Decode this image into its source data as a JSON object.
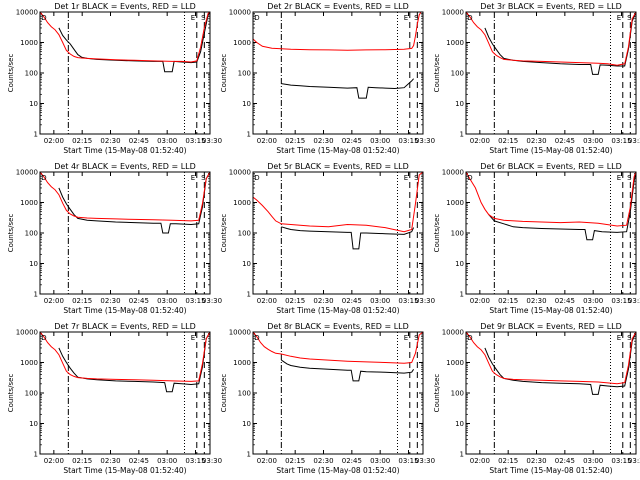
{
  "chart_data": [
    {
      "type": "line",
      "title": "Det 1r BLACK = Events, RED = LLD",
      "xlabel": "Start Time (15-May-08 01:52:40)",
      "ylabel": "Counts/sec",
      "yscale": "log",
      "ylim": [
        1,
        10000
      ],
      "yticks": [
        "1",
        "10",
        "100",
        "1000",
        "10000"
      ],
      "xticks": [
        "02:00",
        "02:15",
        "02:30",
        "02:45",
        "03:00",
        "03:15",
        "03:30"
      ],
      "markers": [
        "D",
        "E",
        "S"
      ],
      "series": [
        {
          "color": "#000000",
          "x": [
            10,
            12,
            14,
            16,
            18,
            20,
            22,
            25,
            30,
            40,
            50,
            60,
            65,
            66,
            70,
            71,
            75,
            80,
            83,
            85,
            87,
            89,
            90
          ],
          "y": [
            3000,
            1700,
            1200,
            900,
            600,
            400,
            330,
            300,
            280,
            260,
            250,
            240,
            240,
            110,
            110,
            240,
            230,
            220,
            230,
            500,
            2000,
            8000,
            10000
          ]
        },
        {
          "color": "#ff0000",
          "x": [
            0,
            2,
            4,
            6,
            8,
            10,
            12,
            14,
            16,
            18,
            20,
            22,
            25,
            30,
            40,
            50,
            60,
            70,
            75,
            80,
            83,
            85,
            87,
            89,
            90
          ],
          "y": [
            10000,
            7000,
            4500,
            3300,
            2600,
            1800,
            1000,
            550,
            420,
            350,
            320,
            310,
            300,
            290,
            270,
            260,
            250,
            240,
            240,
            230,
            250,
            700,
            3000,
            9000,
            10000
          ]
        }
      ]
    },
    {
      "type": "line",
      "title": "Det 2r BLACK = Events, RED = LLD",
      "xlabel": "Start Time (15-May-08 01:52:40)",
      "ylabel": "Counts/sec",
      "yscale": "log",
      "ylim": [
        1,
        10000
      ],
      "yticks": [
        "1",
        "10",
        "100",
        "1000",
        "10000"
      ],
      "xticks": [
        "02:00",
        "02:15",
        "02:30",
        "02:45",
        "03:00",
        "03:15",
        "03:30"
      ],
      "markers": [
        "D",
        "E",
        "S"
      ],
      "series": [
        {
          "color": "#000000",
          "x": [
            15,
            18,
            20,
            25,
            30,
            40,
            50,
            55,
            56,
            60,
            61,
            65,
            70,
            75,
            80,
            84,
            85
          ],
          "y": [
            45,
            42,
            40,
            38,
            36,
            34,
            32,
            33,
            15,
            15,
            34,
            33,
            32,
            31,
            33,
            55,
            65
          ]
        },
        {
          "color": "#ff0000",
          "x": [
            0,
            2,
            5,
            10,
            15,
            20,
            30,
            40,
            50,
            60,
            70,
            80,
            84,
            85,
            86,
            87,
            88,
            89,
            90
          ],
          "y": [
            1300,
            1000,
            750,
            650,
            620,
            600,
            580,
            570,
            560,
            570,
            580,
            600,
            640,
            800,
            1600,
            4000,
            8000,
            10000,
            10000
          ]
        }
      ]
    },
    {
      "type": "line",
      "title": "Det 3r BLACK = Events, RED = LLD",
      "xlabel": "Start Time (15-May-08 01:52:40)",
      "ylabel": "Counts/sec",
      "yscale": "log",
      "ylim": [
        1,
        10000
      ],
      "yticks": [
        "1",
        "10",
        "100",
        "1000",
        "10000"
      ],
      "xticks": [
        "02:00",
        "02:15",
        "02:30",
        "02:45",
        "03:00",
        "03:15",
        "03:30"
      ],
      "markers": [
        "D",
        "E",
        "S"
      ],
      "series": [
        {
          "color": "#000000",
          "x": [
            10,
            12,
            14,
            16,
            18,
            20,
            25,
            30,
            40,
            50,
            60,
            66,
            67,
            70,
            71,
            75,
            80,
            84,
            86,
            88,
            90
          ],
          "y": [
            3000,
            1500,
            900,
            600,
            400,
            300,
            260,
            240,
            220,
            200,
            190,
            190,
            90,
            90,
            185,
            180,
            170,
            170,
            600,
            5000,
            10000
          ]
        },
        {
          "color": "#ff0000",
          "x": [
            0,
            2,
            4,
            6,
            8,
            10,
            12,
            14,
            16,
            18,
            20,
            25,
            30,
            40,
            50,
            60,
            70,
            75,
            80,
            84,
            86,
            88,
            90
          ],
          "y": [
            10000,
            7000,
            4500,
            3300,
            2600,
            1800,
            950,
            500,
            380,
            320,
            280,
            260,
            250,
            240,
            230,
            220,
            210,
            200,
            180,
            200,
            700,
            6000,
            10000
          ]
        }
      ]
    },
    {
      "type": "line",
      "title": "Det 4r BLACK = Events, RED = LLD",
      "xlabel": "Start Time (15-May-08 01:52:40)",
      "ylabel": "Counts/sec",
      "yscale": "log",
      "ylim": [
        1,
        10000
      ],
      "yticks": [
        "1",
        "10",
        "100",
        "1000",
        "10000"
      ],
      "xticks": [
        "02:00",
        "02:15",
        "02:30",
        "02:45",
        "03:00",
        "03:15",
        "03:30"
      ],
      "markers": [
        "D",
        "E",
        "S"
      ],
      "series": [
        {
          "color": "#000000",
          "x": [
            10,
            12,
            14,
            16,
            18,
            20,
            25,
            30,
            40,
            50,
            60,
            64,
            65,
            68,
            69,
            72,
            80,
            84,
            86,
            88,
            90
          ],
          "y": [
            3000,
            1500,
            900,
            600,
            400,
            300,
            260,
            250,
            230,
            220,
            210,
            210,
            100,
            100,
            200,
            200,
            190,
            200,
            700,
            6000,
            10000
          ]
        },
        {
          "color": "#ff0000",
          "x": [
            0,
            2,
            4,
            6,
            8,
            10,
            12,
            14,
            16,
            18,
            20,
            25,
            30,
            40,
            50,
            60,
            70,
            80,
            84,
            86,
            88,
            90
          ],
          "y": [
            10000,
            7000,
            4500,
            3300,
            2600,
            1800,
            950,
            550,
            420,
            360,
            330,
            310,
            300,
            290,
            280,
            270,
            260,
            250,
            260,
            900,
            6000,
            10000
          ]
        }
      ]
    },
    {
      "type": "line",
      "title": "Det 5r BLACK = Events, RED = LLD",
      "xlabel": "Start Time (15-May-08 01:52:40)",
      "ylabel": "Counts/sec",
      "yscale": "log",
      "ylim": [
        1,
        10000
      ],
      "yticks": [
        "1",
        "10",
        "100",
        "1000",
        "10000"
      ],
      "xticks": [
        "02:00",
        "02:15",
        "02:30",
        "02:45",
        "03:00",
        "03:15",
        "03:30"
      ],
      "markers": [
        "D",
        "E",
        "S"
      ],
      "series": [
        {
          "color": "#000000",
          "x": [
            15,
            18,
            20,
            25,
            30,
            40,
            50,
            52,
            53,
            56,
            57,
            60,
            70,
            80,
            84,
            85
          ],
          "y": [
            160,
            140,
            130,
            120,
            115,
            110,
            105,
            105,
            30,
            30,
            100,
            100,
            95,
            90,
            110,
            150
          ]
        },
        {
          "color": "#ff0000",
          "x": [
            0,
            2,
            5,
            8,
            10,
            12,
            15,
            20,
            25,
            30,
            40,
            50,
            60,
            70,
            80,
            84,
            86,
            88,
            90
          ],
          "y": [
            1500,
            1200,
            800,
            500,
            350,
            250,
            200,
            190,
            180,
            170,
            160,
            190,
            180,
            150,
            110,
            130,
            900,
            8000,
            10000
          ]
        }
      ]
    },
    {
      "type": "line",
      "title": "Det 6r BLACK = Events, RED = LLD",
      "xlabel": "Start Time (15-May-08 01:52:40)",
      "ylabel": "Counts/sec",
      "yscale": "log",
      "ylim": [
        1,
        10000
      ],
      "yticks": [
        "1",
        "10",
        "100",
        "1000",
        "10000"
      ],
      "xticks": [
        "02:00",
        "02:15",
        "02:30",
        "02:45",
        "03:00",
        "03:15",
        "03:30"
      ],
      "markers": [
        "D",
        "E",
        "S"
      ],
      "series": [
        {
          "color": "#000000",
          "x": [
            12,
            15,
            20,
            25,
            30,
            40,
            50,
            60,
            63,
            64,
            67,
            68,
            72,
            80,
            85,
            87,
            89,
            90
          ],
          "y": [
            400,
            250,
            200,
            160,
            150,
            140,
            135,
            130,
            130,
            60,
            60,
            120,
            110,
            105,
            110,
            500,
            5000,
            10000
          ]
        },
        {
          "color": "#ff0000",
          "x": [
            0,
            2,
            5,
            8,
            10,
            12,
            15,
            20,
            30,
            40,
            50,
            60,
            70,
            80,
            85,
            87,
            89,
            90
          ],
          "y": [
            10000,
            6000,
            3000,
            1000,
            600,
            400,
            300,
            260,
            240,
            230,
            220,
            230,
            210,
            170,
            180,
            700,
            7000,
            10000
          ]
        }
      ]
    },
    {
      "type": "line",
      "title": "Det 7r BLACK = Events, RED = LLD",
      "xlabel": "Start Time (15-May-08 01:52:40)",
      "ylabel": "Counts/sec",
      "yscale": "log",
      "ylim": [
        1,
        10000
      ],
      "yticks": [
        "1",
        "10",
        "100",
        "1000",
        "10000"
      ],
      "xticks": [
        "02:00",
        "02:15",
        "02:30",
        "02:45",
        "03:00",
        "03:15",
        "03:30"
      ],
      "markers": [
        "D",
        "E",
        "S"
      ],
      "series": [
        {
          "color": "#000000",
          "x": [
            10,
            12,
            14,
            16,
            18,
            20,
            25,
            30,
            40,
            50,
            60,
            66,
            67,
            70,
            71,
            75,
            80,
            84,
            86,
            88,
            90
          ],
          "y": [
            3000,
            1600,
            1000,
            650,
            450,
            330,
            290,
            270,
            250,
            240,
            230,
            220,
            110,
            110,
            210,
            200,
            190,
            200,
            700,
            6000,
            10000
          ]
        },
        {
          "color": "#ff0000",
          "x": [
            0,
            2,
            4,
            6,
            8,
            10,
            12,
            14,
            16,
            18,
            20,
            25,
            30,
            40,
            50,
            60,
            70,
            80,
            84,
            86,
            88,
            90
          ],
          "y": [
            10000,
            7000,
            4500,
            3300,
            2600,
            1800,
            950,
            520,
            400,
            350,
            320,
            300,
            290,
            280,
            270,
            260,
            250,
            240,
            250,
            900,
            6000,
            10000
          ]
        }
      ]
    },
    {
      "type": "line",
      "title": "Det 8r BLACK = Events, RED = LLD",
      "xlabel": "Start Time (15-May-08 01:52:40)",
      "ylabel": "Counts/sec",
      "yscale": "log",
      "ylim": [
        1,
        10000
      ],
      "yticks": [
        "1",
        "10",
        "100",
        "1000",
        "10000"
      ],
      "xticks": [
        "02:00",
        "02:15",
        "02:30",
        "02:45",
        "03:00",
        "03:15",
        "03:30"
      ],
      "markers": [
        "D",
        "E",
        "S"
      ],
      "series": [
        {
          "color": "#000000",
          "x": [
            15,
            18,
            20,
            25,
            30,
            40,
            50,
            52,
            53,
            56,
            57,
            60,
            70,
            80,
            84,
            85
          ],
          "y": [
            1200,
            900,
            800,
            700,
            650,
            600,
            560,
            560,
            250,
            250,
            520,
            500,
            480,
            450,
            480,
            600
          ]
        },
        {
          "color": "#ff0000",
          "x": [
            0,
            2,
            4,
            6,
            8,
            10,
            12,
            15,
            20,
            25,
            30,
            40,
            50,
            60,
            70,
            80,
            84,
            86,
            88,
            90
          ],
          "y": [
            10000,
            7000,
            4500,
            3300,
            2700,
            2300,
            2000,
            1900,
            1600,
            1400,
            1300,
            1200,
            1100,
            1050,
            1000,
            950,
            1000,
            2000,
            8000,
            10000
          ]
        }
      ]
    },
    {
      "type": "line",
      "title": "Det 9r BLACK = Events, RED = LLD",
      "xlabel": "Start Time (15-May-08 01:52:40)",
      "ylabel": "Counts/sec",
      "yscale": "log",
      "ylim": [
        1,
        10000
      ],
      "yticks": [
        "1",
        "10",
        "100",
        "1000",
        "10000"
      ],
      "xticks": [
        "02:00",
        "02:15",
        "02:30",
        "02:45",
        "03:00",
        "03:15",
        "03:30"
      ],
      "markers": [
        "D",
        "E",
        "S"
      ],
      "series": [
        {
          "color": "#000000",
          "x": [
            10,
            12,
            14,
            16,
            18,
            20,
            25,
            30,
            40,
            50,
            60,
            66,
            67,
            70,
            71,
            75,
            80,
            84,
            86,
            88,
            90
          ],
          "y": [
            3000,
            1500,
            900,
            600,
            400,
            300,
            260,
            240,
            220,
            210,
            200,
            190,
            90,
            90,
            180,
            170,
            160,
            170,
            600,
            5000,
            10000
          ]
        },
        {
          "color": "#ff0000",
          "x": [
            0,
            2,
            4,
            6,
            8,
            10,
            12,
            14,
            16,
            18,
            20,
            25,
            30,
            40,
            50,
            60,
            70,
            80,
            84,
            86,
            88,
            90
          ],
          "y": [
            10000,
            7000,
            4500,
            3300,
            2600,
            1800,
            950,
            520,
            400,
            340,
            300,
            280,
            270,
            260,
            250,
            240,
            230,
            200,
            220,
            800,
            6000,
            10000
          ]
        }
      ]
    }
  ]
}
